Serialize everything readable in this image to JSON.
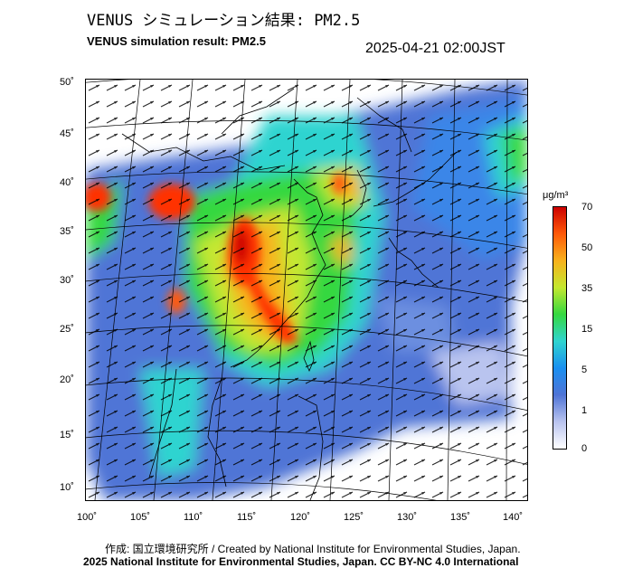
{
  "header": {
    "title_jp": "VENUS シミュレーション結果: PM2.5",
    "title_en": "VENUS simulation result: PM2.5",
    "timestamp": "2025-04-21 02:00JST"
  },
  "map": {
    "lon_labels": [
      "100˚",
      "105˚",
      "110˚",
      "115˚",
      "120˚",
      "125˚",
      "130˚",
      "135˚",
      "140˚"
    ],
    "lat_labels": [
      "50˚",
      "45˚",
      "40˚",
      "35˚",
      "30˚",
      "25˚",
      "20˚",
      "15˚",
      "10˚"
    ],
    "lon_range": [
      100,
      141
    ],
    "lat_range": [
      9,
      51
    ]
  },
  "colorbar": {
    "unit": "μg/m³",
    "ticks": [
      "70",
      "50",
      "35",
      "15",
      "5",
      "1",
      "0"
    ],
    "colors": [
      "#ffffff",
      "#b9c4ef",
      "#4f74d6",
      "#1a8ff0",
      "#2fd4d0",
      "#35d840",
      "#c4e830",
      "#f8b21c",
      "#ff5a08",
      "#cc0000"
    ]
  },
  "footer": {
    "credit": "作成: 国立環境研究所 / Created by National Institute for Environmental Studies, Japan.",
    "copyright": "2025 National Institute for Environmental Studies, Japan. CC BY-NC 4.0 International"
  }
}
